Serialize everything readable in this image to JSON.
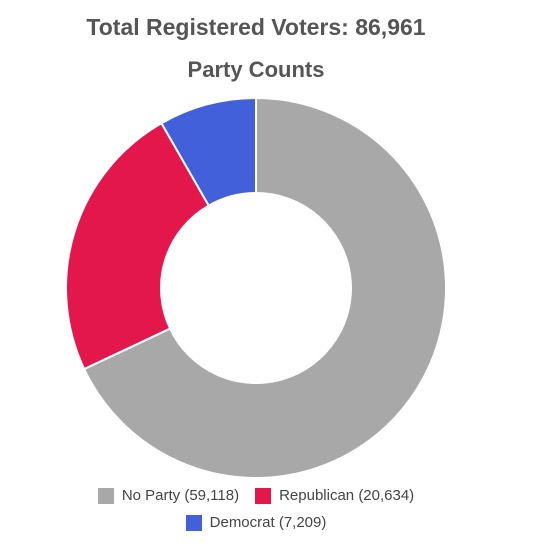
{
  "chart_data": {
    "type": "pie",
    "style": "donut",
    "title": "Total Registered Voters: 86,961",
    "subtitle": "Party Counts",
    "total": 86961,
    "categories": [
      "No Party",
      "Republican",
      "Democrat"
    ],
    "values": [
      59118,
      20634,
      7209
    ],
    "colors": [
      "#a8a8a8",
      "#e3174b",
      "#4160d9"
    ],
    "legend_placement": "bottom",
    "legend": [
      {
        "label": "No Party (59,118)",
        "color": "#a8a8a8"
      },
      {
        "label": "Republican (20,634)",
        "color": "#e3174b"
      },
      {
        "label": "Democrat (7,209)",
        "color": "#4160d9"
      }
    ]
  }
}
